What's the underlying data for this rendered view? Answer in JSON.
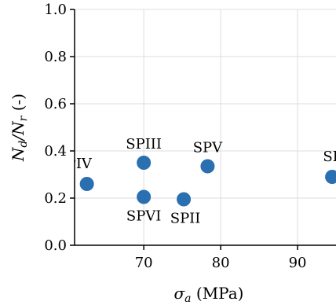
{
  "chart_data": {
    "type": "scatter",
    "title": "",
    "xlabel_main": "σ",
    "xlabel_sub": "a",
    "xlabel_rest": " (MPa)",
    "ylabel_main_n": "N",
    "ylabel_sub_d": "d",
    "ylabel_slash": "/",
    "ylabel_main_n2": "N",
    "ylabel_sub_r": "r",
    "ylabel_rest": " (-)",
    "xlim": [
      61,
      95
    ],
    "ylim": [
      0.0,
      1.0
    ],
    "grid": true,
    "marker_color": "#2a6fb0",
    "xticks": [
      70,
      80,
      90
    ],
    "yticks": [
      0.0,
      0.2,
      0.4,
      0.6,
      0.8,
      1.0
    ],
    "ytick_labels": [
      "0.0",
      "0.2",
      "0.4",
      "0.6",
      "0.8",
      "1.0"
    ],
    "xtick_labels": [
      "70",
      "80",
      "90"
    ],
    "points": [
      {
        "label": "SPIV",
        "x": 62.6,
        "y": 0.26
      },
      {
        "label": "SPIII",
        "x": 70.0,
        "y": 0.35
      },
      {
        "label": "SPVI",
        "x": 70.0,
        "y": 0.205
      },
      {
        "label": "SPII",
        "x": 75.2,
        "y": 0.195
      },
      {
        "label": "SPV",
        "x": 78.3,
        "y": 0.335
      },
      {
        "label": "SPI",
        "x": 94.5,
        "y": 0.29
      }
    ]
  }
}
